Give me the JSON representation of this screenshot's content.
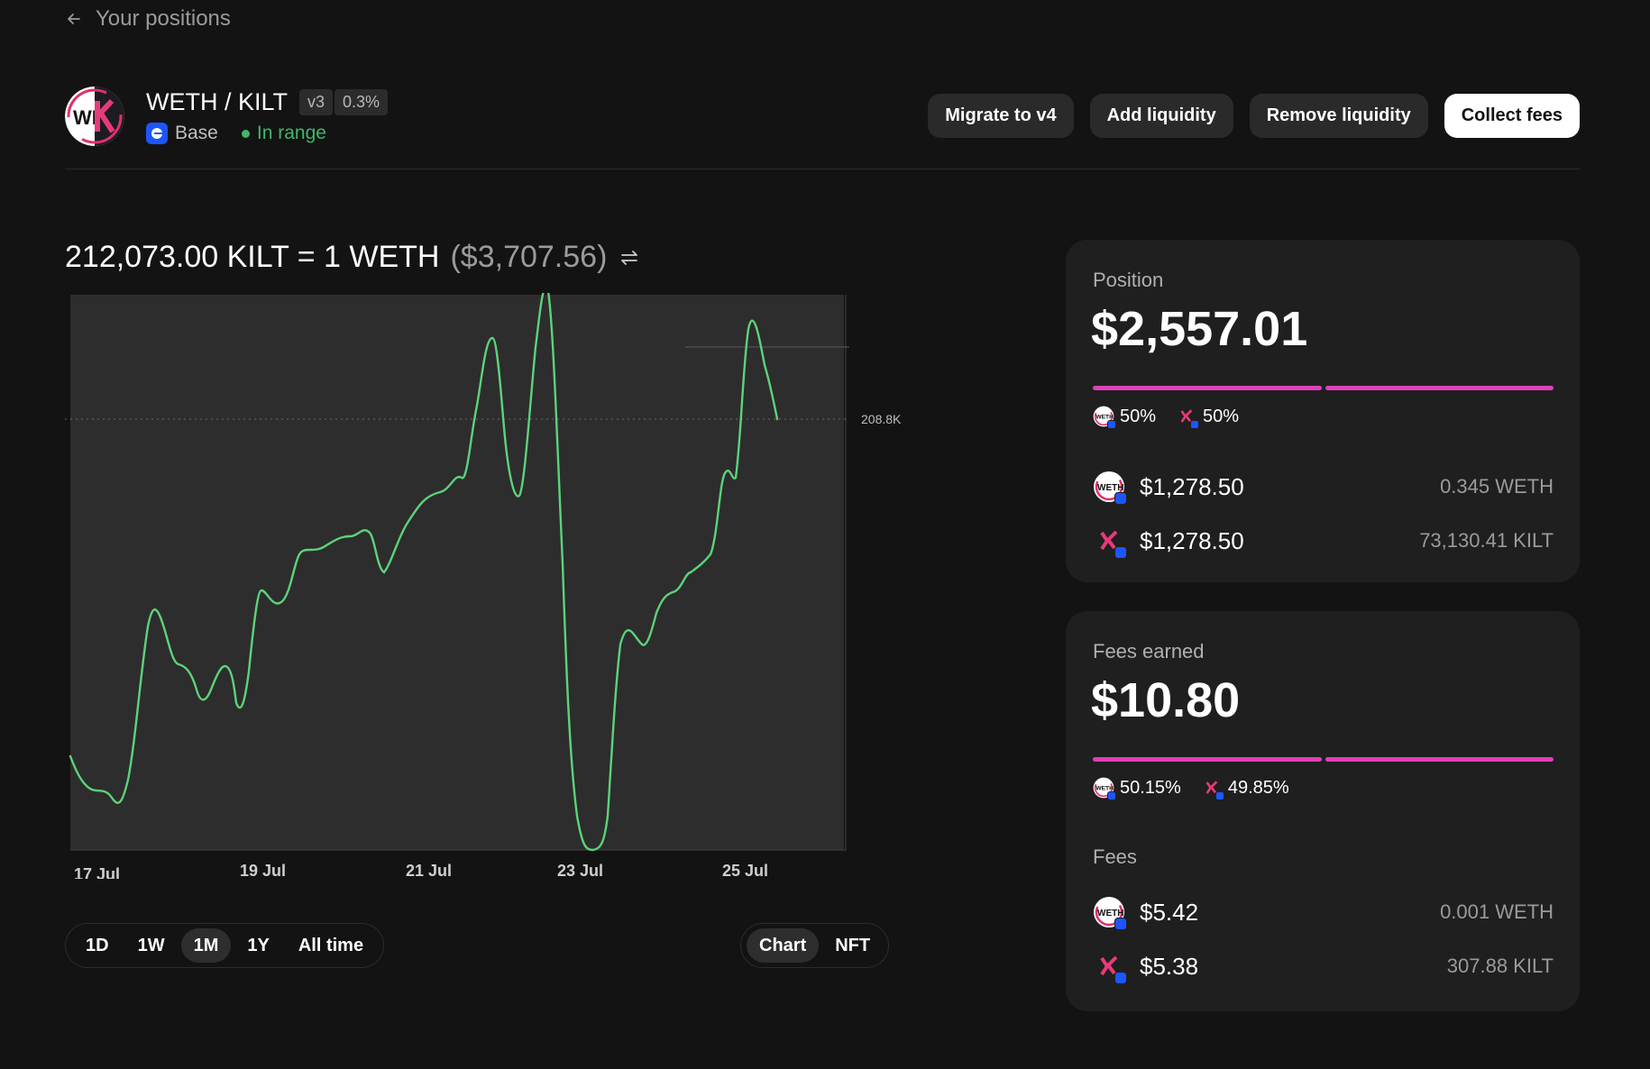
{
  "nav": {
    "back_label": "Your positions"
  },
  "header": {
    "pair": "WETH / KILT",
    "version": "v3",
    "fee_tier": "0.3%",
    "network": "Base",
    "status": "In range",
    "actions": {
      "migrate": "Migrate to v4",
      "add": "Add liquidity",
      "remove": "Remove liquidity",
      "collect": "Collect fees"
    }
  },
  "price": {
    "ratio": "212,073.00 KILT = 1 WETH",
    "usd": "($3,707.56)"
  },
  "chart_data": {
    "type": "line",
    "x_labels": [
      "17 Jul",
      "19 Jul",
      "21 Jul",
      "23 Jul",
      "25 Jul"
    ],
    "current_price_label": "208.8K",
    "line_color": "#5cd37a"
  },
  "range_tabs": [
    "1D",
    "1W",
    "1M",
    "1Y",
    "All time"
  ],
  "range_active": "1M",
  "view_tabs": [
    "Chart",
    "NFT"
  ],
  "view_active": "Chart",
  "position": {
    "label": "Position",
    "value": "$2,557.01",
    "weth_pct": "50%",
    "kilt_pct": "50%",
    "weth_usd": "$1,278.50",
    "weth_amount": "0.345 WETH",
    "kilt_usd": "$1,278.50",
    "kilt_amount": "73,130.41 KILT"
  },
  "fees": {
    "label": "Fees earned",
    "value": "$10.80",
    "weth_pct": "50.15%",
    "kilt_pct": "49.85%",
    "section_label": "Fees",
    "weth_usd": "$5.42",
    "weth_amount": "0.001 WETH",
    "kilt_usd": "$5.38",
    "kilt_amount": "307.88 KILT"
  },
  "colors": {
    "accent": "#e040b8",
    "in_range": "#40b66b",
    "chart_line": "#5cd37a"
  }
}
